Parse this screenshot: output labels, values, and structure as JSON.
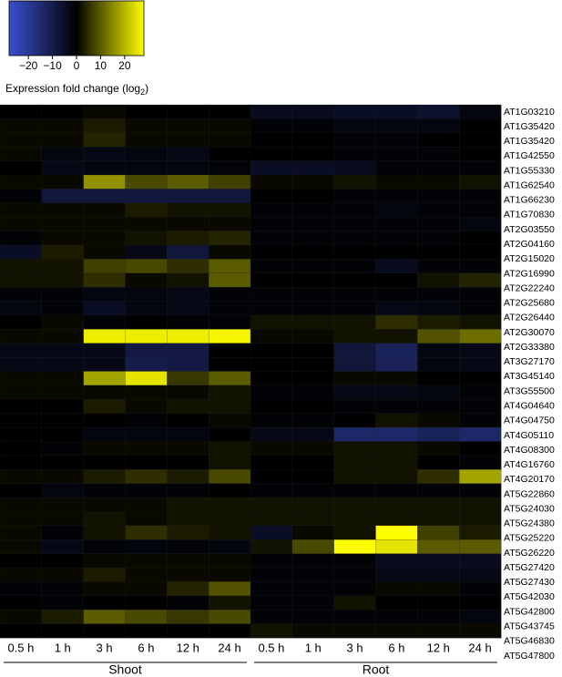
{
  "chart_data": {
    "type": "heatmap",
    "colorbar_label": [
      "Expression fold change (log",
      "2",
      ")"
    ],
    "zlim": [
      -28,
      28
    ],
    "zticks": [
      {
        "value": -20,
        "label": "−20"
      },
      {
        "value": -10,
        "label": "−10"
      },
      0,
      10,
      20
    ],
    "colorscale": [
      "#3a4fd0",
      "#000000",
      "#ffff00"
    ],
    "x": [
      "0.5 h",
      "1 h",
      "3 h",
      "6 h",
      "12 h",
      "24 h",
      "0.5 h",
      "1 h",
      "3 h",
      "6 h",
      "12 h",
      "24 h"
    ],
    "groups": [
      "Shoot",
      "Root"
    ],
    "rows": [
      "AT1G03210",
      "AT1G35420",
      "AT1G35420",
      "AT1G42550",
      "AT1G55330",
      "AT1G62540",
      "AT1G66230",
      "AT1G70830",
      "AT2G03550",
      "AT2G04160",
      "AT2G15020",
      "AT2G16990",
      "AT2G22240",
      "AT2G25680",
      "AT2G26440",
      "AT2G30070",
      "AT2G33380",
      "AT3G27170",
      "AT3G45140",
      "AT3G55500",
      "AT4G04640",
      "AT4G04750",
      "AT4G05110",
      "AT4G08300",
      "AT4G16760",
      "AT4G20170",
      "AT5G22860",
      "AT5G24030",
      "AT5G24380",
      "AT5G25220",
      "AT5G26220",
      "AT5G27420",
      "AT5G27430",
      "AT5G42030",
      "AT5G42800",
      "AT5G43745",
      "AT5G46830",
      "AT5G47800"
    ],
    "values": [
      [
        0,
        0,
        1,
        0,
        0,
        0,
        -4,
        -4,
        -5,
        -5,
        -6,
        -2
      ],
      [
        1,
        1,
        3,
        1,
        1,
        1,
        -1,
        -1,
        -2,
        -2,
        -2,
        0
      ],
      [
        1,
        1,
        4,
        1,
        1,
        1,
        0,
        0,
        -1,
        -1,
        0,
        0
      ],
      [
        1,
        -2,
        -3,
        -2,
        -3,
        0,
        0,
        0,
        -1,
        -1,
        -1,
        0
      ],
      [
        0,
        -3,
        -2,
        -2,
        -2,
        -1,
        -5,
        -5,
        -4,
        -1,
        -1,
        -1
      ],
      [
        1,
        1,
        16,
        8,
        10,
        7,
        1,
        1,
        2,
        1,
        1,
        2
      ],
      [
        -1,
        -8,
        -8,
        -8,
        -8,
        -8,
        0,
        0,
        -1,
        -1,
        -1,
        -1
      ],
      [
        1,
        1,
        1,
        3,
        2,
        2,
        -1,
        -1,
        -1,
        -2,
        -1,
        -1
      ],
      [
        1,
        1,
        1,
        1,
        1,
        1,
        -1,
        -1,
        -1,
        -1,
        -1,
        -2
      ],
      [
        -1,
        1,
        1,
        2,
        3,
        4,
        -1,
        -1,
        -1,
        -1,
        -1,
        0
      ],
      [
        -5,
        3,
        1,
        -3,
        -8,
        1,
        0,
        0,
        0,
        0,
        0,
        0
      ],
      [
        2,
        2,
        7,
        8,
        5,
        10,
        -1,
        -1,
        -1,
        -4,
        -1,
        -1
      ],
      [
        2,
        2,
        5,
        1,
        2,
        10,
        0,
        0,
        0,
        0,
        2,
        4
      ],
      [
        -1,
        -1,
        -2,
        -2,
        -3,
        -1,
        -1,
        -1,
        -1,
        -1,
        -1,
        -1
      ],
      [
        -2,
        -1,
        -5,
        -2,
        -3,
        -1,
        -1,
        -1,
        -1,
        -3,
        -2,
        -1
      ],
      [
        0,
        1,
        -1,
        0,
        -1,
        -1,
        2,
        2,
        2,
        5,
        3,
        2
      ],
      [
        1,
        1,
        26,
        26,
        26,
        27,
        1,
        1,
        2,
        2,
        9,
        12
      ],
      [
        -3,
        -3,
        -3,
        -9,
        -9,
        0,
        0,
        0,
        -8,
        -12,
        -2,
        -3
      ],
      [
        -3,
        -3,
        -3,
        -10,
        -9,
        0,
        0,
        0,
        -8,
        -12,
        -2,
        -3
      ],
      [
        1,
        1,
        18,
        25,
        6,
        10,
        0,
        0,
        1,
        1,
        0,
        0
      ],
      [
        1,
        1,
        1,
        1,
        1,
        2,
        -1,
        -1,
        -3,
        -3,
        -2,
        -1
      ],
      [
        0,
        0,
        3,
        1,
        2,
        2,
        0,
        0,
        -1,
        -1,
        -1,
        -1
      ],
      [
        0,
        0,
        0,
        -1,
        0,
        1,
        -1,
        -1,
        0,
        2,
        1,
        -1
      ],
      [
        0,
        0,
        -2,
        -2,
        -2,
        0,
        -3,
        -3,
        -14,
        -14,
        -12,
        -14
      ],
      [
        0,
        -1,
        1,
        1,
        1,
        2,
        1,
        1,
        2,
        2,
        1,
        0
      ],
      [
        0,
        0,
        0,
        0,
        0,
        2,
        0,
        0,
        2,
        2,
        0,
        -1
      ],
      [
        1,
        1,
        3,
        5,
        3,
        8,
        0,
        0,
        2,
        2,
        5,
        18
      ],
      [
        0,
        -2,
        -1,
        -1,
        -1,
        0,
        -1,
        -1,
        -1,
        -1,
        -1,
        -1
      ],
      [
        1,
        1,
        1,
        1,
        2,
        2,
        2,
        2,
        2,
        2,
        2,
        2
      ],
      [
        1,
        1,
        2,
        1,
        2,
        2,
        2,
        2,
        2,
        2,
        2,
        2
      ],
      [
        1,
        -1,
        2,
        5,
        3,
        2,
        -5,
        1,
        2,
        28,
        7,
        3
      ],
      [
        1,
        -3,
        -1,
        -2,
        -1,
        -2,
        2,
        8,
        28,
        25,
        10,
        10
      ],
      [
        0,
        0,
        1,
        1,
        1,
        1,
        -1,
        -1,
        -1,
        -4,
        -4,
        -4
      ],
      [
        1,
        1,
        3,
        1,
        1,
        1,
        -1,
        -1,
        -1,
        -3,
        -3,
        -3
      ],
      [
        -1,
        -1,
        1,
        1,
        4,
        9,
        -1,
        -1,
        -1,
        1,
        1,
        -1
      ],
      [
        0,
        -1,
        0,
        0,
        -1,
        2,
        -1,
        -1,
        2,
        0,
        0,
        0
      ],
      [
        1,
        3,
        10,
        8,
        6,
        8,
        -1,
        -1,
        -1,
        -1,
        -1,
        -2
      ],
      [
        0,
        0,
        0,
        0,
        0,
        0,
        2,
        1,
        1,
        1,
        1,
        1
      ]
    ]
  }
}
